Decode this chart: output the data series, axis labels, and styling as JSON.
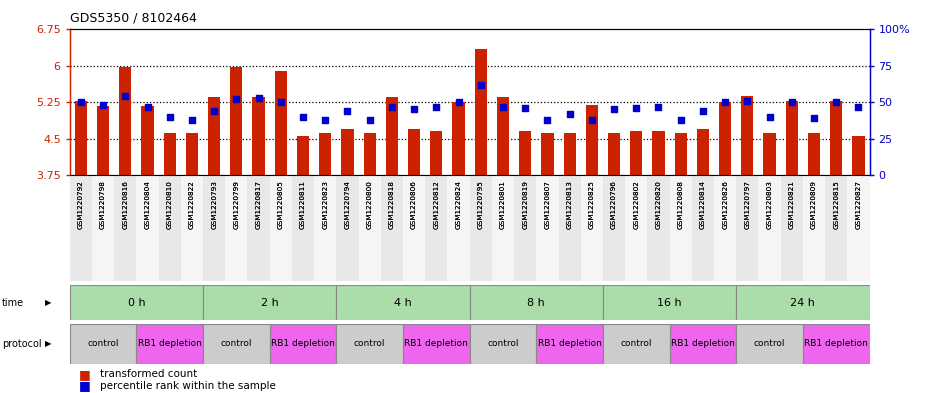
{
  "title": "GDS5350 / 8102464",
  "ylim_left": [
    3.75,
    6.75
  ],
  "ylim_right": [
    0,
    100
  ],
  "yticks_left": [
    3.75,
    4.5,
    5.25,
    6.0,
    6.75
  ],
  "yticks_right": [
    0,
    25,
    50,
    75,
    100
  ],
  "ytick_labels_left": [
    "3.75",
    "4.5",
    "5.25",
    "6",
    "6.75"
  ],
  "ytick_labels_right": [
    "0",
    "25",
    "50",
    "75",
    "100%"
  ],
  "bar_color": "#cc2200",
  "dot_color": "#0000cc",
  "samples": [
    "GSM1220792",
    "GSM1220798",
    "GSM1220816",
    "GSM1220804",
    "GSM1220810",
    "GSM1220822",
    "GSM1220793",
    "GSM1220799",
    "GSM1220817",
    "GSM1220805",
    "GSM1220811",
    "GSM1220823",
    "GSM1220794",
    "GSM1220800",
    "GSM1220818",
    "GSM1220806",
    "GSM1220812",
    "GSM1220824",
    "GSM1220795",
    "GSM1220801",
    "GSM1220819",
    "GSM1220807",
    "GSM1220813",
    "GSM1220825",
    "GSM1220796",
    "GSM1220802",
    "GSM1220820",
    "GSM1220808",
    "GSM1220814",
    "GSM1220826",
    "GSM1220797",
    "GSM1220803",
    "GSM1220821",
    "GSM1220809",
    "GSM1220815",
    "GSM1220827"
  ],
  "bar_values": [
    5.28,
    5.18,
    5.98,
    5.18,
    4.62,
    4.62,
    5.35,
    5.98,
    5.35,
    5.9,
    4.55,
    4.62,
    4.7,
    4.62,
    5.35,
    4.7,
    4.65,
    5.25,
    6.35,
    5.35,
    4.65,
    4.62,
    4.62,
    5.2,
    4.62,
    4.65,
    4.65,
    4.62,
    4.7,
    5.25,
    5.38,
    4.62,
    5.28,
    4.62,
    5.28,
    4.55
  ],
  "dot_values_pct": [
    50,
    48,
    54,
    47,
    40,
    38,
    44,
    52,
    53,
    50,
    40,
    38,
    44,
    38,
    47,
    45,
    47,
    50,
    62,
    47,
    46,
    38,
    42,
    38,
    45,
    46,
    47,
    38,
    44,
    50,
    51,
    40,
    50,
    39,
    50,
    47
  ],
  "time_groups": [
    {
      "label": "0 h",
      "start": 0,
      "end": 6
    },
    {
      "label": "2 h",
      "start": 6,
      "end": 12
    },
    {
      "label": "4 h",
      "start": 12,
      "end": 18
    },
    {
      "label": "8 h",
      "start": 18,
      "end": 24
    },
    {
      "label": "16 h",
      "start": 24,
      "end": 30
    },
    {
      "label": "24 h",
      "start": 30,
      "end": 36
    }
  ],
  "protocol_groups": [
    {
      "label": "control",
      "start": 0,
      "end": 3,
      "color": "#cccccc"
    },
    {
      "label": "RB1 depletion",
      "start": 3,
      "end": 6,
      "color": "#ee66ee"
    },
    {
      "label": "control",
      "start": 6,
      "end": 9,
      "color": "#cccccc"
    },
    {
      "label": "RB1 depletion",
      "start": 9,
      "end": 12,
      "color": "#ee66ee"
    },
    {
      "label": "control",
      "start": 12,
      "end": 15,
      "color": "#cccccc"
    },
    {
      "label": "RB1 depletion",
      "start": 15,
      "end": 18,
      "color": "#ee66ee"
    },
    {
      "label": "control",
      "start": 18,
      "end": 21,
      "color": "#cccccc"
    },
    {
      "label": "RB1 depletion",
      "start": 21,
      "end": 24,
      "color": "#ee66ee"
    },
    {
      "label": "control",
      "start": 24,
      "end": 27,
      "color": "#cccccc"
    },
    {
      "label": "RB1 depletion",
      "start": 27,
      "end": 30,
      "color": "#ee66ee"
    },
    {
      "label": "control",
      "start": 30,
      "end": 33,
      "color": "#cccccc"
    },
    {
      "label": "RB1 depletion",
      "start": 33,
      "end": 36,
      "color": "#ee66ee"
    }
  ],
  "time_color": "#aaddaa",
  "bg_color": "#ffffff",
  "left_axis_color": "#cc2200",
  "right_axis_color": "#0000cc",
  "gridline_values": [
    4.5,
    5.25,
    6.0
  ]
}
